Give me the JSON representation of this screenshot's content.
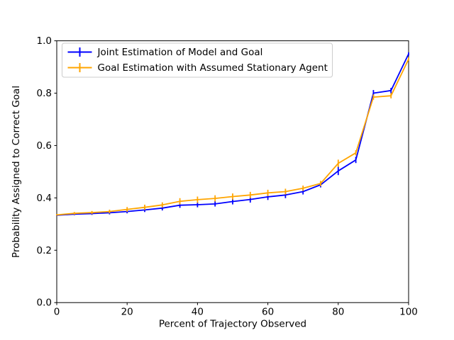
{
  "chart_data": {
    "type": "line",
    "title": "",
    "xlabel": "Percent of Trajectory Observed",
    "ylabel": "Probability Assigned to Correct Goal",
    "xlim": [
      0,
      100
    ],
    "ylim": [
      0.0,
      1.0
    ],
    "xticks": [
      0,
      20,
      40,
      60,
      80,
      100
    ],
    "xtick_labels": [
      "0",
      "20",
      "40",
      "60",
      "80",
      "100"
    ],
    "yticks": [
      0.0,
      0.2,
      0.4,
      0.6,
      0.8,
      1.0
    ],
    "ytick_labels": [
      "0.0",
      "0.2",
      "0.4",
      "0.6",
      "0.8",
      "1.0"
    ],
    "grid": false,
    "legend_position": "upper left",
    "background_color": "#ffffff",
    "spine_color": "#000000",
    "x": [
      0,
      5,
      10,
      15,
      20,
      25,
      30,
      35,
      40,
      45,
      50,
      55,
      60,
      65,
      70,
      75,
      80,
      85,
      90,
      95,
      100
    ],
    "series": [
      {
        "name": "Joint Estimation of Model and Goal",
        "color": "#0000ff",
        "marker": "errorbar",
        "values": [
          0.334,
          0.338,
          0.34,
          0.343,
          0.348,
          0.354,
          0.361,
          0.372,
          0.374,
          0.377,
          0.386,
          0.394,
          0.404,
          0.411,
          0.424,
          0.45,
          0.503,
          0.545,
          0.8,
          0.81,
          0.95
        ],
        "errors": [
          0.003,
          0.004,
          0.005,
          0.006,
          0.007,
          0.008,
          0.009,
          0.01,
          0.01,
          0.01,
          0.011,
          0.012,
          0.012,
          0.012,
          0.011,
          0.01,
          0.016,
          0.012,
          0.012,
          0.01,
          0.006
        ]
      },
      {
        "name": "Goal Estimation with Assumed Stationary Agent",
        "color": "#ffa500",
        "marker": "errorbar",
        "values": [
          0.335,
          0.341,
          0.344,
          0.348,
          0.356,
          0.364,
          0.373,
          0.387,
          0.393,
          0.398,
          0.405,
          0.411,
          0.419,
          0.424,
          0.437,
          0.455,
          0.532,
          0.572,
          0.785,
          0.79,
          0.93
        ],
        "errors": [
          0.003,
          0.005,
          0.006,
          0.007,
          0.009,
          0.01,
          0.01,
          0.012,
          0.012,
          0.012,
          0.012,
          0.012,
          0.012,
          0.011,
          0.01,
          0.01,
          0.014,
          0.01,
          0.01,
          0.01,
          0.006
        ]
      }
    ],
    "legend_border_color": "#cccccc"
  }
}
